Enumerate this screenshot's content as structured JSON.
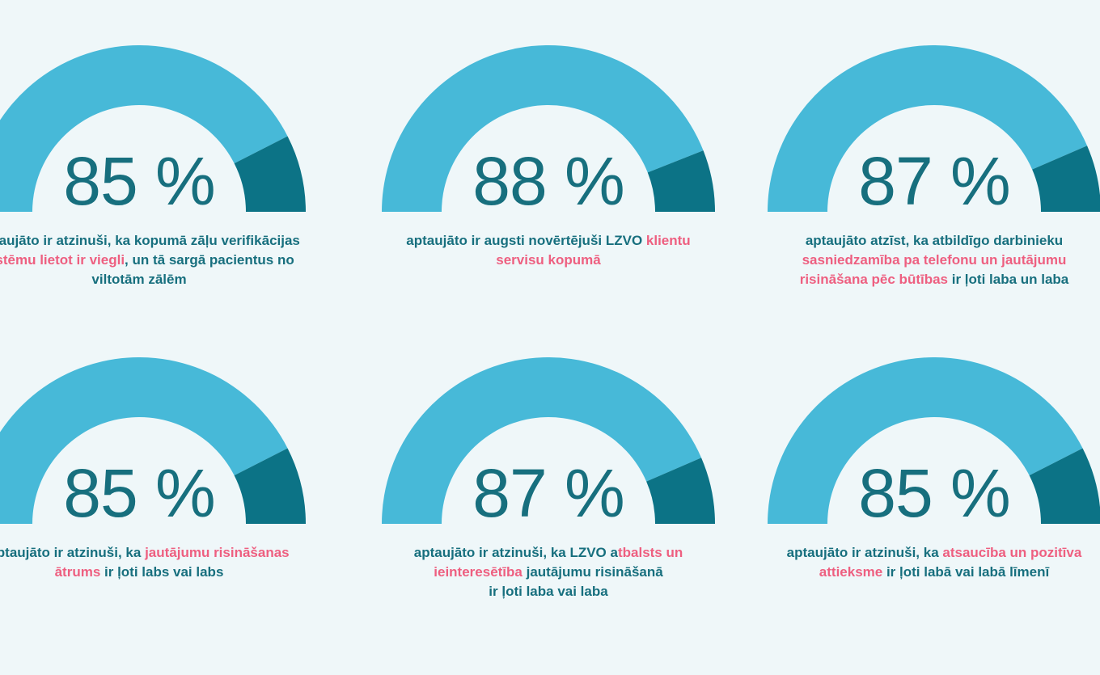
{
  "colors": {
    "background": "#eff7f9",
    "arc_value": "#47b9d8",
    "arc_remainder": "#0c7386",
    "number_teal": "#176f7e",
    "caption_teal": "#176f7e",
    "caption_pink": "#ee5f80"
  },
  "chart_data": [
    {
      "type": "gauge",
      "shape": "semicircle-donut",
      "value": 85,
      "range": [
        0,
        100
      ],
      "unit": "%",
      "value_label": "85 %",
      "caption_plain": "aptaujāto ir atzinuši, ka kopumā zāļu verifikācijas sistēmu lietot ir viegli, un tā sargā pacientus no viltotām zālēm",
      "caption_segments": [
        {
          "text": "aptaujāto ir atzinuši, ka kopumā zāļu verifikācijas\n",
          "color": "teal"
        },
        {
          "text": "sistēmu lietot ir viegli",
          "color": "pink"
        },
        {
          "text": ", un tā sargā pacientus no\nviltotām zālēm",
          "color": "teal"
        }
      ]
    },
    {
      "type": "gauge",
      "shape": "semicircle-donut",
      "value": 88,
      "range": [
        0,
        100
      ],
      "unit": "%",
      "value_label": "88 %",
      "caption_plain": "aptaujāto ir augsti novērtējuši LZVO klientu servisu kopumā",
      "caption_segments": [
        {
          "text": "aptaujāto ir augsti novērtējuši LZVO ",
          "color": "teal"
        },
        {
          "text": "klientu\nservisu kopumā",
          "color": "pink"
        }
      ]
    },
    {
      "type": "gauge",
      "shape": "semicircle-donut",
      "value": 87,
      "range": [
        0,
        100
      ],
      "unit": "%",
      "value_label": "87 %",
      "caption_plain": "aptaujāto atzīst, ka atbildīgo darbinieku sasniedzamība pa telefonu un jautājumu risināšana pēc būtības ir ļoti laba un laba",
      "caption_segments": [
        {
          "text": "aptaujāto atzīst, ka atbildīgo darbinieku\n",
          "color": "teal"
        },
        {
          "text": "sasniedzamība pa telefonu un jautājumu\nrisināšana pēc būtības",
          "color": "pink"
        },
        {
          "text": " ir ļoti laba un laba",
          "color": "teal"
        }
      ]
    },
    {
      "type": "gauge",
      "shape": "semicircle-donut",
      "value": 85,
      "range": [
        0,
        100
      ],
      "unit": "%",
      "value_label": "85 %",
      "caption_plain": "aptaujāto ir atzinuši, ka jautājumu risināšanas ātrums ir ļoti labs vai labs",
      "caption_segments": [
        {
          "text": "aptaujāto ir atzinuši, ka ",
          "color": "teal"
        },
        {
          "text": "jautājumu risināšanas\nātrums",
          "color": "pink"
        },
        {
          "text": " ir ļoti labs vai labs",
          "color": "teal"
        }
      ]
    },
    {
      "type": "gauge",
      "shape": "semicircle-donut",
      "value": 87,
      "range": [
        0,
        100
      ],
      "unit": "%",
      "value_label": "87 %",
      "caption_plain": "aptaujāto ir atzinuši, ka LZVO atbalsts un ieinteresētība jautājumu risināšanā ir ļoti laba vai laba",
      "caption_segments": [
        {
          "text": "aptaujāto ir atzinuši, ka LZVO a",
          "color": "teal"
        },
        {
          "text": "tbalsts un\nieinteresētība",
          "color": "pink"
        },
        {
          "text": " jautājumu risināšanā\nir ļoti laba vai laba",
          "color": "teal"
        }
      ]
    },
    {
      "type": "gauge",
      "shape": "semicircle-donut",
      "value": 85,
      "range": [
        0,
        100
      ],
      "unit": "%",
      "value_label": "85 %",
      "caption_plain": "aptaujāto ir atzinuši, ka atsaucība un pozitīva attieksme ir ļoti labā vai labā līmenī",
      "caption_segments": [
        {
          "text": "aptaujāto ir atzinuši, ka ",
          "color": "teal"
        },
        {
          "text": "atsaucība un pozitīva\nattieksme",
          "color": "pink"
        },
        {
          "text": " ir ļoti labā vai labā līmenī",
          "color": "teal"
        }
      ]
    }
  ]
}
